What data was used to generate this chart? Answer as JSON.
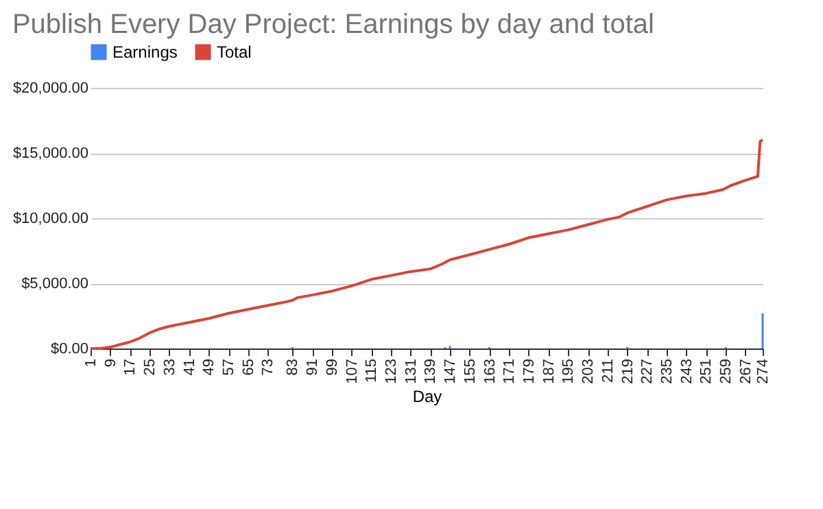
{
  "chart_data": {
    "type": "bar",
    "title": "Publish Every Day Project: Earnings by day and total",
    "xlabel": "Day",
    "xlim": [
      1,
      274
    ],
    "xticks": [
      1,
      9,
      17,
      25,
      33,
      41,
      49,
      57,
      65,
      73,
      83,
      91,
      99,
      107,
      115,
      123,
      131,
      139,
      147,
      155,
      163,
      171,
      179,
      187,
      195,
      203,
      211,
      219,
      227,
      235,
      243,
      251,
      259,
      267,
      274
    ],
    "ylim": [
      0,
      20000
    ],
    "yticks": [
      {
        "value": 0,
        "label": "$0.00"
      },
      {
        "value": 5000,
        "label": "$5,000.00"
      },
      {
        "value": 10000,
        "label": "$10,000.00"
      },
      {
        "value": 15000,
        "label": "$15,000.00"
      },
      {
        "value": 20000,
        "label": "$20,000.00"
      }
    ],
    "grid": "y",
    "legend": "top",
    "series": [
      {
        "name": "Earnings",
        "color": "#4285f4",
        "x": [
          83,
          145,
          147,
          163,
          219,
          259,
          274
        ],
        "values": [
          100,
          100,
          200,
          100,
          100,
          100,
          2700
        ]
      },
      {
        "name": "Total",
        "type": "line",
        "color": "#db4437",
        "x": [
          1,
          5,
          9,
          13,
          17,
          21,
          25,
          29,
          33,
          41,
          49,
          57,
          65,
          73,
          81,
          83,
          85,
          91,
          99,
          107,
          115,
          123,
          131,
          139,
          144,
          147,
          155,
          163,
          171,
          179,
          187,
          195,
          203,
          211,
          216,
          219,
          227,
          235,
          243,
          251,
          258,
          261,
          267,
          272,
          273,
          274
        ],
        "values": [
          0,
          0,
          100,
          300,
          500,
          800,
          1200,
          1500,
          1700,
          2000,
          2300,
          2700,
          3000,
          3300,
          3600,
          3700,
          3900,
          4100,
          4400,
          4800,
          5300,
          5600,
          5900,
          6100,
          6500,
          6800,
          7200,
          7600,
          8000,
          8500,
          8800,
          9100,
          9500,
          9900,
          10100,
          10400,
          10900,
          11400,
          11700,
          11900,
          12200,
          12500,
          12900,
          13200,
          15900,
          16000
        ]
      }
    ]
  }
}
